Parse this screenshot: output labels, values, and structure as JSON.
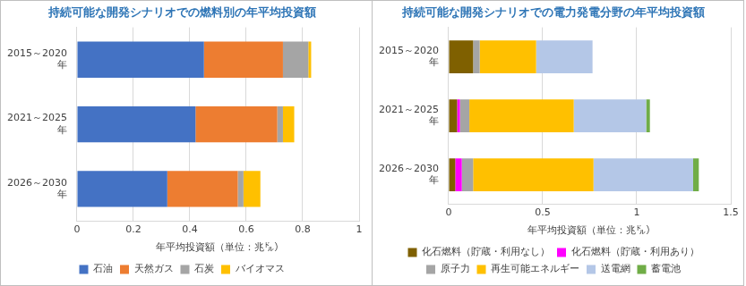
{
  "chart_data": [
    {
      "type": "bar",
      "orientation": "horizontal",
      "stacked": true,
      "title": "持続可能な開発シナリオでの燃料別の年平均投資額",
      "xlabel": "年平均投資額（単位：兆㌦）",
      "categories": [
        [
          "2015～2020",
          "年"
        ],
        [
          "2021～2025",
          "年"
        ],
        [
          "2026～2030",
          "年"
        ]
      ],
      "series": [
        {
          "name": "石油",
          "color": "#4472c4",
          "values": [
            0.45,
            0.42,
            0.32
          ]
        },
        {
          "name": "天然ガス",
          "color": "#ed7d31",
          "values": [
            0.28,
            0.29,
            0.25
          ]
        },
        {
          "name": "石炭",
          "color": "#a5a5a5",
          "values": [
            0.09,
            0.02,
            0.02
          ]
        },
        {
          "name": "バイオマス",
          "color": "#ffc000",
          "values": [
            0.01,
            0.04,
            0.06
          ]
        }
      ],
      "xlim": [
        0,
        1
      ],
      "xticks": [
        0,
        0.2,
        0.4,
        0.6,
        0.8,
        1
      ],
      "grid": true,
      "legend": "bottom"
    },
    {
      "type": "bar",
      "orientation": "horizontal",
      "stacked": true,
      "title": "持続可能な開発シナリオでの電力発電分野の年平均投資額",
      "xlabel": "年平均投資額（単位：兆㌦）",
      "categories": [
        [
          "2015～2020",
          "年"
        ],
        [
          "2021～2025",
          "年"
        ],
        [
          "2026～2030",
          "年"
        ]
      ],
      "series": [
        {
          "name": "化石燃料（貯蔵・利用なし）",
          "color": "#7f6000",
          "values": [
            0.13,
            0.045,
            0.035
          ]
        },
        {
          "name": "化石燃料（貯蔵・利用あり）",
          "color": "#ff00ff",
          "values": [
            0,
            0.015,
            0.035
          ]
        },
        {
          "name": "原子力",
          "color": "#a5a5a5",
          "values": [
            0.035,
            0.05,
            0.06
          ]
        },
        {
          "name": "再生可能エネルギー",
          "color": "#ffc000",
          "values": [
            0.3,
            0.555,
            0.64
          ]
        },
        {
          "name": "送電網",
          "color": "#b4c7e7",
          "values": [
            0.3,
            0.385,
            0.53
          ]
        },
        {
          "name": "蓄電池",
          "color": "#70ad47",
          "values": [
            0,
            0.02,
            0.03
          ]
        }
      ],
      "xlim": [
        0,
        1.5
      ],
      "xticks": [
        0,
        0.5,
        1,
        1.5
      ],
      "grid": true,
      "legend": "bottom"
    }
  ]
}
